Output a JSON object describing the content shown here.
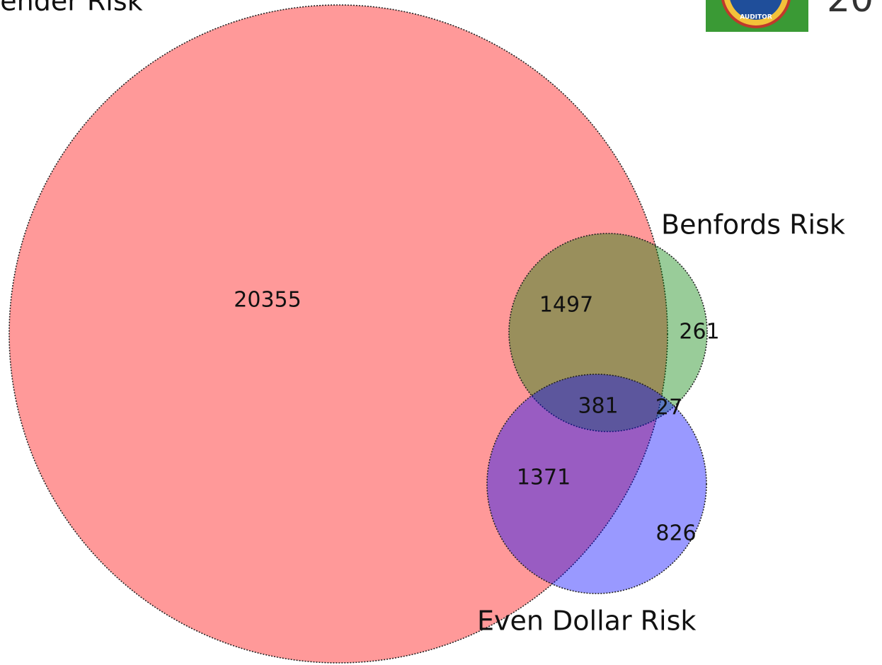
{
  "chart_data": {
    "type": "venn",
    "sets": [
      {
        "name": "Spender Risk",
        "color": "#ff0000"
      },
      {
        "name": "Benfords Risk",
        "color": "#008000"
      },
      {
        "name": "Even Dollar Risk",
        "color": "#0000ff"
      }
    ],
    "values": [
      20355,
      261,
      1497,
      826,
      1371,
      27,
      381
    ]
  },
  "header": {
    "logo_text": "AUDITOR",
    "side_text": "20"
  }
}
